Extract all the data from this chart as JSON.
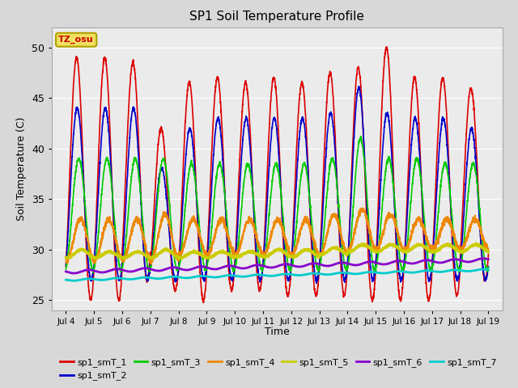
{
  "title": "SP1 Soil Temperature Profile",
  "xlabel": "Time",
  "ylabel": "Soil Temperature (C)",
  "ylim": [
    24,
    52
  ],
  "xlim_days": [
    3.5,
    19.5
  ],
  "xtick_labels": [
    "Jul 4",
    "Jul 5",
    "Jul 6",
    "Jul 7",
    "Jul 8",
    "Jul 9",
    "Jul 10",
    "Jul 11",
    "Jul 12",
    "Jul 13",
    "Jul 14",
    "Jul 15",
    "Jul 16",
    "Jul 17",
    "Jul 18",
    "Jul 19"
  ],
  "xtick_positions": [
    4,
    5,
    6,
    7,
    8,
    9,
    10,
    11,
    12,
    13,
    14,
    15,
    16,
    17,
    18,
    19
  ],
  "fig_bg_color": "#d8d8d8",
  "plot_bg_color": "#ebebeb",
  "legend_label_box": "TZ_osu",
  "legend_label_box_bg": "#f0e060",
  "legend_label_box_border": "#b0a000",
  "series": [
    {
      "name": "sp1_smT_1",
      "color": "#dd0000",
      "linewidth": 1.2
    },
    {
      "name": "sp1_smT_2",
      "color": "#0000cc",
      "linewidth": 1.2
    },
    {
      "name": "sp1_smT_3",
      "color": "#00cc00",
      "linewidth": 1.2
    },
    {
      "name": "sp1_smT_4",
      "color": "#ee8800",
      "linewidth": 1.5
    },
    {
      "name": "sp1_smT_5",
      "color": "#cccc00",
      "linewidth": 2.0
    },
    {
      "name": "sp1_smT_6",
      "color": "#8800cc",
      "linewidth": 2.0
    },
    {
      "name": "sp1_smT_7",
      "color": "#00cccc",
      "linewidth": 2.0
    }
  ]
}
